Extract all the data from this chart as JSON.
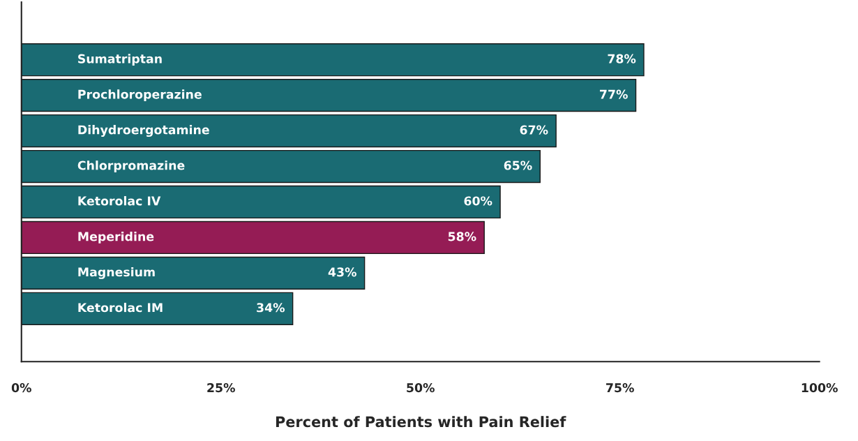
{
  "chart_data": {
    "type": "bar",
    "orientation": "horizontal",
    "xlabel": "Percent of Patients with Pain Relief",
    "categories": [
      "Sumatriptan",
      "Prochloroperazine",
      "Dihydroergotamine",
      "Chlorpromazine",
      "Ketorolac IV",
      "Meperidine",
      "Magnesium",
      "Ketorolac IM"
    ],
    "values": [
      78,
      77,
      67,
      65,
      60,
      58,
      43,
      34
    ],
    "colors": [
      "#1a6b73",
      "#1a6b73",
      "#1a6b73",
      "#1a6b73",
      "#1a6b73",
      "#951c55",
      "#1a6b73",
      "#1a6b73"
    ],
    "value_labels": [
      "78%",
      "77%",
      "67%",
      "65%",
      "60%",
      "58%",
      "43%",
      "34%"
    ],
    "xlim": [
      0,
      100
    ],
    "xticks": [
      {
        "value": 0,
        "label": "0%"
      },
      {
        "value": 25,
        "label": "25%"
      },
      {
        "value": 50,
        "label": "50%"
      },
      {
        "value": 75,
        "label": "75%"
      },
      {
        "value": 100,
        "label": "100%"
      }
    ],
    "grid": false,
    "legend": false
  }
}
